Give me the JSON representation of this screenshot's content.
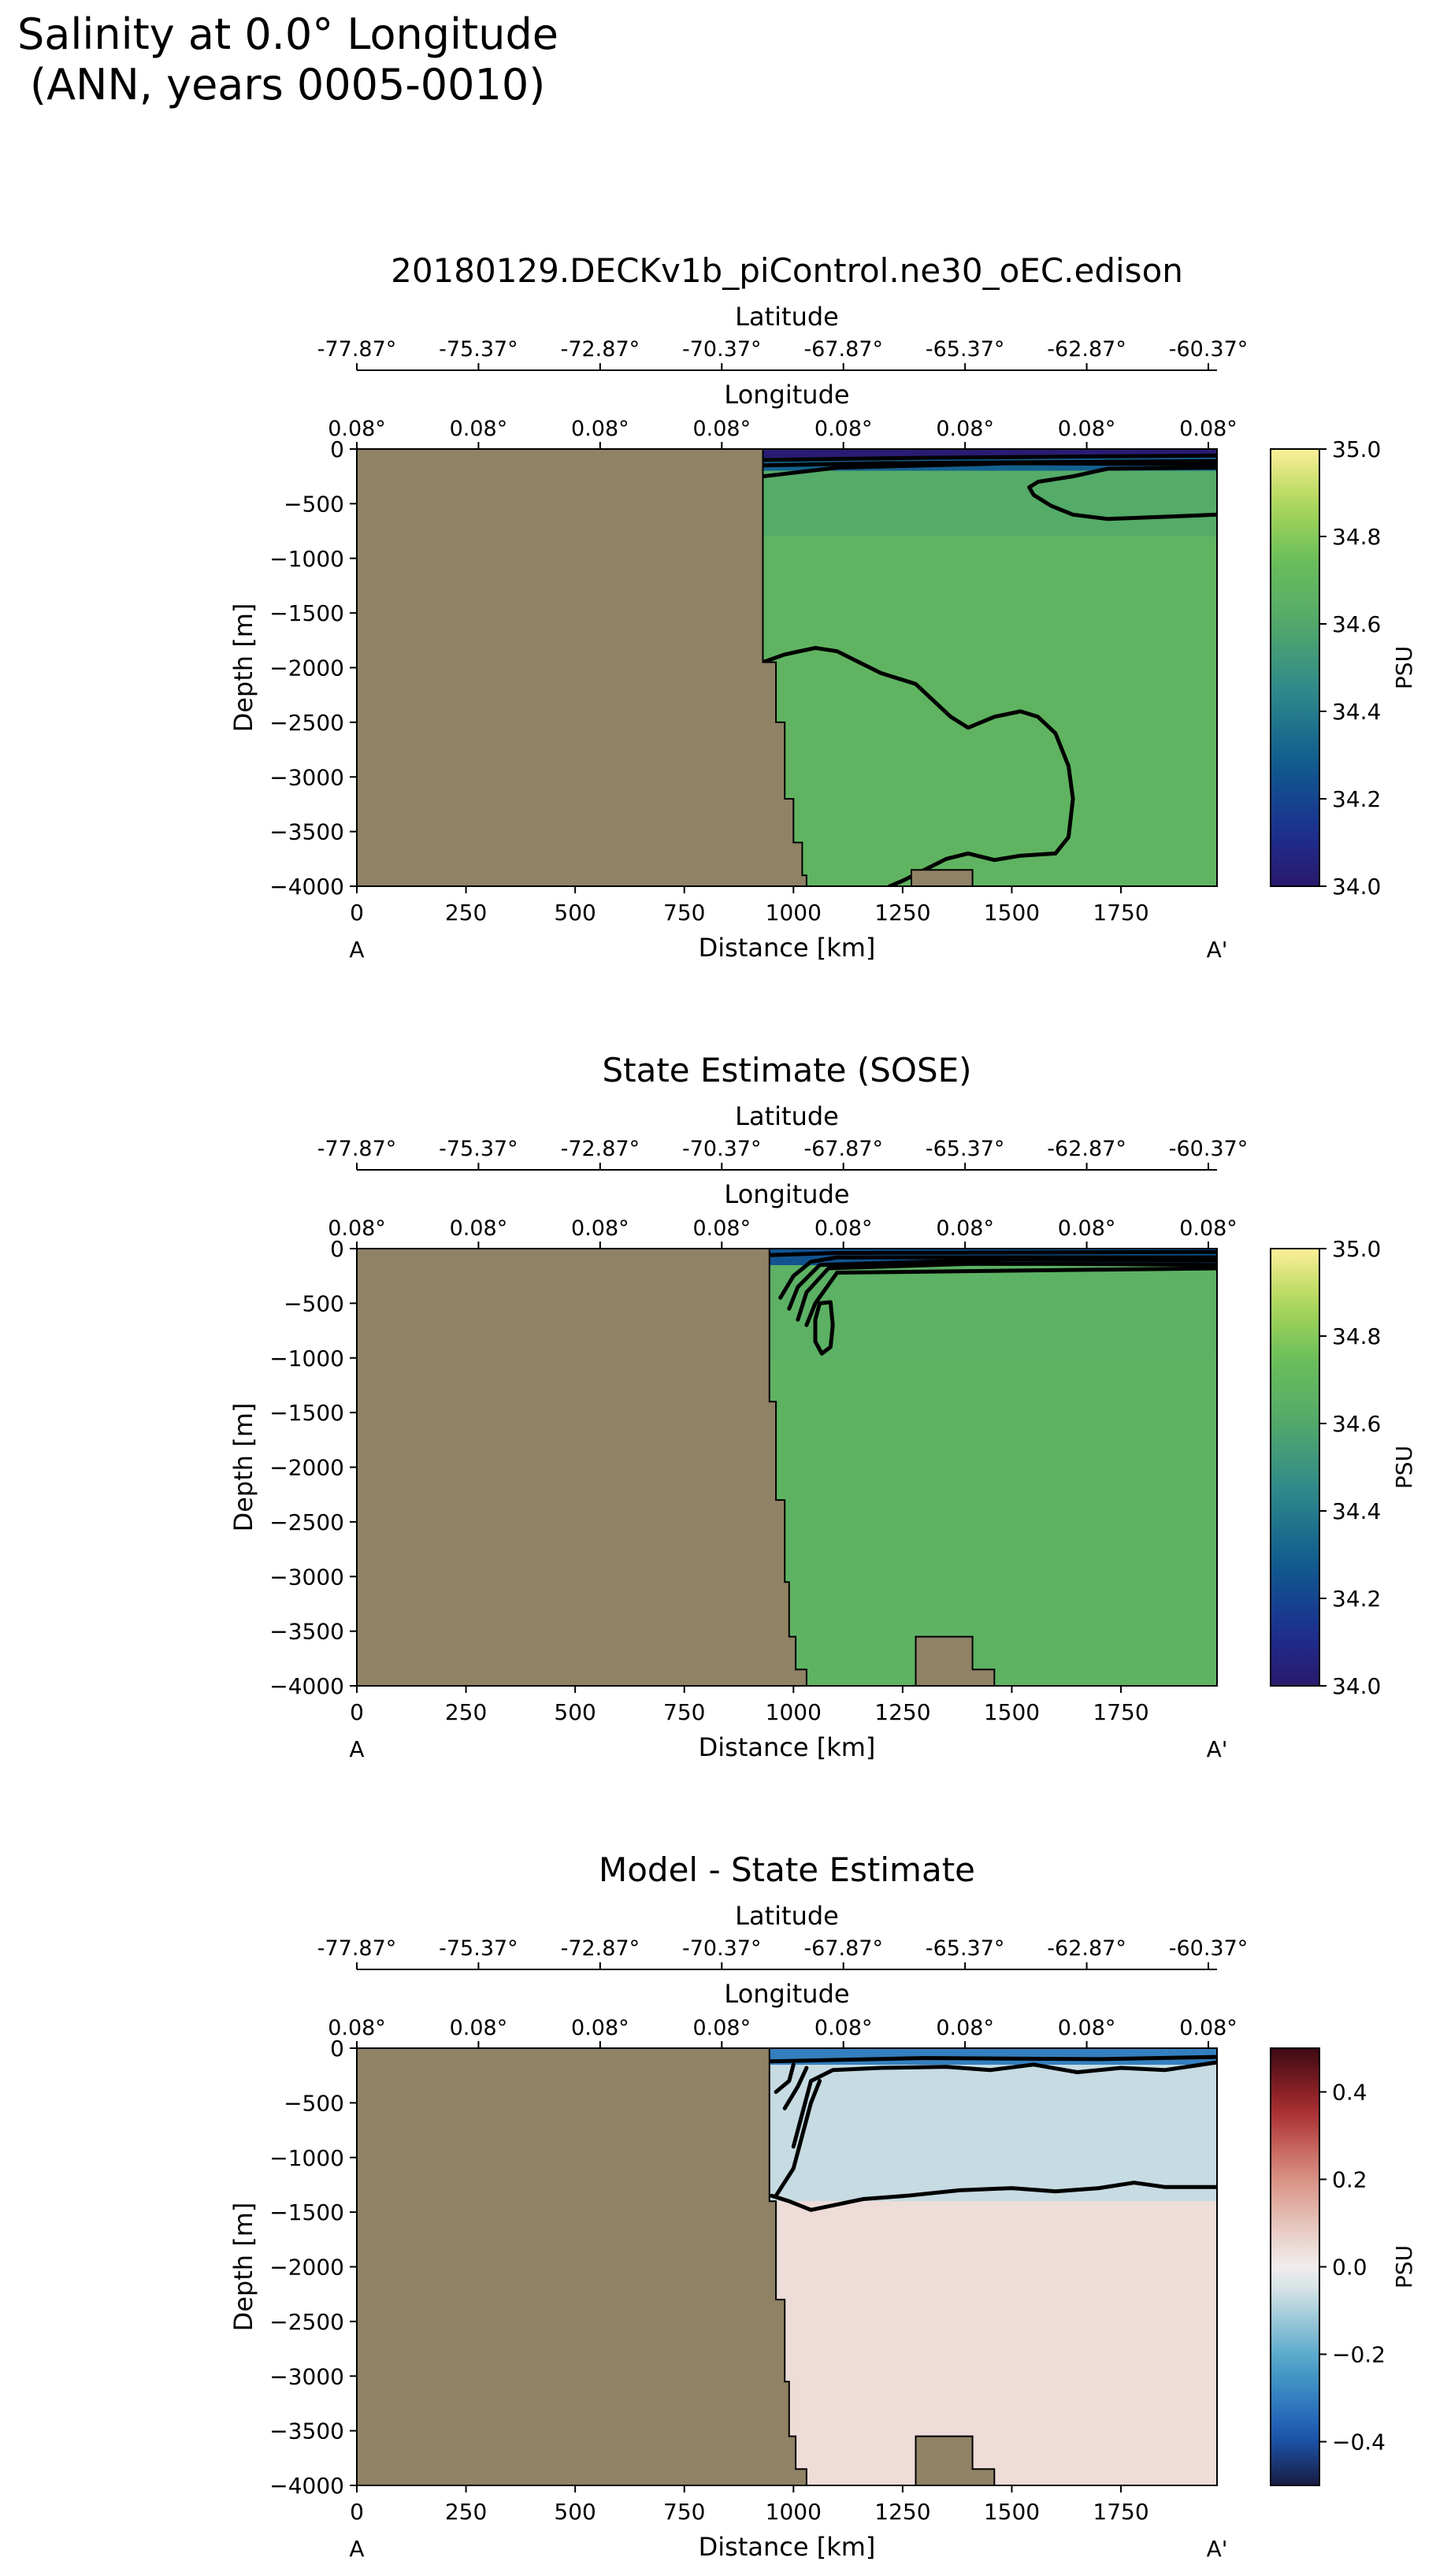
{
  "figure": {
    "title_line1": "Salinity at 0.0° Longitude",
    "title_line2": "(ANN, years 0005-0010)"
  },
  "chart_data": [
    {
      "type": "heatmap",
      "title": "20180129.DECKv1b_piControl.ne30_oEC.edison",
      "xlabel": "Distance [km]",
      "ylabel": "Depth [m]",
      "xlim": [
        0,
        1970
      ],
      "ylim": [
        -4000,
        0
      ],
      "xticks": [
        0,
        250,
        500,
        750,
        1000,
        1250,
        1500,
        1750
      ],
      "yticks": [
        0,
        -500,
        -1000,
        -1500,
        -2000,
        -2500,
        -3000,
        -3500,
        -4000
      ],
      "section_start": "A",
      "section_end": "A'",
      "lat_axis_label": "Latitude",
      "lat_ticks": [
        "-77.87°",
        "-75.37°",
        "-72.87°",
        "-70.37°",
        "-67.87°",
        "-65.37°",
        "-62.87°",
        "-60.37°"
      ],
      "lon_axis_label": "Longitude",
      "lon_ticks": [
        "0.08°",
        "0.08°",
        "0.08°",
        "0.08°",
        "0.08°",
        "0.08°",
        "0.08°",
        "0.08°"
      ],
      "colorbar": {
        "label": "PSU",
        "vmin": 34.0,
        "vmax": 35.0,
        "ticks": [
          "34.0",
          "34.2",
          "34.4",
          "34.6",
          "34.8",
          "35.0"
        ],
        "colormap": "haline"
      },
      "ocean_start_km": 930,
      "field": [
        {
          "depth_from": 0,
          "depth_to": -80,
          "value": 34.02
        },
        {
          "depth_from": -80,
          "depth_to": -200,
          "value": 34.3
        },
        {
          "depth_from": -200,
          "depth_to": -800,
          "value": 34.62
        },
        {
          "depth_from": -800,
          "depth_to": -4000,
          "value": 34.68
        }
      ],
      "contours": [
        {
          "level": 34.1,
          "points": [
            [
              930,
              -100
            ],
            [
              1300,
              -80
            ],
            [
              1970,
              -60
            ]
          ]
        },
        {
          "level": 34.3,
          "points": [
            [
              930,
              -150
            ],
            [
              1200,
              -130
            ],
            [
              1600,
              -120
            ],
            [
              1970,
              -110
            ]
          ]
        },
        {
          "level": 34.4,
          "points": [
            [
              930,
              -250
            ],
            [
              1100,
              -170
            ],
            [
              1500,
              -130
            ],
            [
              1970,
              -140
            ]
          ]
        },
        {
          "level": 34.62,
          "points": [
            [
              1540,
              -350
            ],
            [
              1560,
              -300
            ],
            [
              1640,
              -250
            ],
            [
              1720,
              -180
            ],
            [
              1970,
              -170
            ]
          ]
        },
        {
          "level": 34.62,
          "points": [
            [
              1970,
              -600
            ],
            [
              1850,
              -620
            ],
            [
              1720,
              -640
            ],
            [
              1640,
              -600
            ],
            [
              1590,
              -520
            ],
            [
              1550,
              -420
            ],
            [
              1540,
              -350
            ]
          ]
        },
        {
          "level": 34.69,
          "points": [
            [
              930,
              -1950
            ],
            [
              980,
              -1880
            ],
            [
              1050,
              -1820
            ],
            [
              1100,
              -1850
            ],
            [
              1150,
              -1950
            ],
            [
              1200,
              -2050
            ],
            [
              1280,
              -2150
            ],
            [
              1320,
              -2300
            ],
            [
              1360,
              -2450
            ],
            [
              1400,
              -2550
            ],
            [
              1460,
              -2450
            ],
            [
              1520,
              -2400
            ],
            [
              1560,
              -2450
            ],
            [
              1600,
              -2600
            ],
            [
              1630,
              -2900
            ],
            [
              1640,
              -3200
            ],
            [
              1630,
              -3550
            ],
            [
              1600,
              -3700
            ],
            [
              1520,
              -3720
            ],
            [
              1460,
              -3760
            ],
            [
              1400,
              -3700
            ],
            [
              1350,
              -3750
            ],
            [
              1300,
              -3850
            ],
            [
              1250,
              -3950
            ],
            [
              1220,
              -4000
            ]
          ]
        }
      ],
      "topography": [
        [
          0,
          0
        ],
        [
          930,
          0
        ],
        [
          930,
          -1950
        ],
        [
          960,
          -1950
        ],
        [
          960,
          -2500
        ],
        [
          980,
          -2500
        ],
        [
          980,
          -3200
        ],
        [
          1000,
          -3200
        ],
        [
          1000,
          -3600
        ],
        [
          1020,
          -3600
        ],
        [
          1020,
          -3900
        ],
        [
          1030,
          -3900
        ],
        [
          1030,
          -4000
        ],
        [
          1270,
          -4000
        ],
        [
          1270,
          -3850
        ],
        [
          1410,
          -3850
        ],
        [
          1410,
          -4000
        ],
        [
          0,
          -4000
        ]
      ]
    },
    {
      "type": "heatmap",
      "title": "State Estimate (SOSE)",
      "xlabel": "Distance [km]",
      "ylabel": "Depth [m]",
      "xlim": [
        0,
        1970
      ],
      "ylim": [
        -4000,
        0
      ],
      "xticks": [
        0,
        250,
        500,
        750,
        1000,
        1250,
        1500,
        1750
      ],
      "yticks": [
        0,
        -500,
        -1000,
        -1500,
        -2000,
        -2500,
        -3000,
        -3500,
        -4000
      ],
      "section_start": "A",
      "section_end": "A'",
      "lat_axis_label": "Latitude",
      "lat_ticks": [
        "-77.87°",
        "-75.37°",
        "-72.87°",
        "-70.37°",
        "-67.87°",
        "-65.37°",
        "-62.87°",
        "-60.37°"
      ],
      "lon_axis_label": "Longitude",
      "lon_ticks": [
        "0.08°",
        "0.08°",
        "0.08°",
        "0.08°",
        "0.08°",
        "0.08°",
        "0.08°",
        "0.08°"
      ],
      "colorbar": {
        "label": "PSU",
        "vmin": 34.0,
        "vmax": 35.0,
        "ticks": [
          "34.0",
          "34.2",
          "34.4",
          "34.6",
          "34.8",
          "35.0"
        ],
        "colormap": "haline"
      },
      "ocean_start_km": 945,
      "field": [
        {
          "depth_from": 0,
          "depth_to": -150,
          "value": 34.25
        },
        {
          "depth_from": -150,
          "depth_to": -1000,
          "value": 34.66
        },
        {
          "depth_from": -1000,
          "depth_to": -4000,
          "value": 34.67
        }
      ],
      "contours": [
        {
          "level": 34.1,
          "points": [
            [
              945,
              -60
            ],
            [
              1100,
              -40
            ],
            [
              1970,
              -30
            ]
          ]
        },
        {
          "level": 34.2,
          "points": [
            [
              970,
              -450
            ],
            [
              1000,
              -250
            ],
            [
              1040,
              -120
            ],
            [
              1100,
              -80
            ],
            [
              1970,
              -80
            ]
          ]
        },
        {
          "level": 34.3,
          "points": [
            [
              990,
              -550
            ],
            [
              1010,
              -350
            ],
            [
              1060,
              -150
            ],
            [
              1300,
              -120
            ],
            [
              1500,
              -100
            ],
            [
              1970,
              -110
            ]
          ]
        },
        {
          "level": 34.4,
          "points": [
            [
              1010,
              -650
            ],
            [
              1030,
              -400
            ],
            [
              1080,
              -180
            ],
            [
              1400,
              -140
            ],
            [
              1600,
              -140
            ],
            [
              1970,
              -150
            ]
          ]
        },
        {
          "level": 34.5,
          "points": [
            [
              1030,
              -700
            ],
            [
              1050,
              -500
            ],
            [
              1100,
              -220
            ],
            [
              1970,
              -180
            ]
          ]
        },
        {
          "level": 34.7,
          "points": [
            [
              1060,
              -500
            ],
            [
              1085,
              -490
            ],
            [
              1090,
              -700
            ],
            [
              1085,
              -900
            ],
            [
              1065,
              -960
            ],
            [
              1050,
              -850
            ],
            [
              1050,
              -650
            ],
            [
              1060,
              -500
            ]
          ]
        }
      ],
      "topography": [
        [
          0,
          0
        ],
        [
          945,
          0
        ],
        [
          945,
          -1400
        ],
        [
          960,
          -1400
        ],
        [
          960,
          -2300
        ],
        [
          980,
          -2300
        ],
        [
          980,
          -3050
        ],
        [
          990,
          -3050
        ],
        [
          990,
          -3550
        ],
        [
          1005,
          -3550
        ],
        [
          1005,
          -3850
        ],
        [
          1030,
          -3850
        ],
        [
          1030,
          -4000
        ],
        [
          1280,
          -4000
        ],
        [
          1280,
          -3550
        ],
        [
          1410,
          -3550
        ],
        [
          1410,
          -3850
        ],
        [
          1460,
          -3850
        ],
        [
          1460,
          -4000
        ],
        [
          0,
          -4000
        ]
      ]
    },
    {
      "type": "heatmap",
      "title": "Model - State Estimate",
      "xlabel": "Distance [km]",
      "ylabel": "Depth [m]",
      "xlim": [
        0,
        1970
      ],
      "ylim": [
        -4000,
        0
      ],
      "xticks": [
        0,
        250,
        500,
        750,
        1000,
        1250,
        1500,
        1750
      ],
      "yticks": [
        0,
        -500,
        -1000,
        -1500,
        -2000,
        -2500,
        -3000,
        -3500,
        -4000
      ],
      "section_start": "A",
      "section_end": "A'",
      "lat_axis_label": "Latitude",
      "lat_ticks": [
        "-77.87°",
        "-75.37°",
        "-72.87°",
        "-70.37°",
        "-67.87°",
        "-65.37°",
        "-62.87°",
        "-60.37°"
      ],
      "lon_axis_label": "Longitude",
      "lon_ticks": [
        "0.08°",
        "0.08°",
        "0.08°",
        "0.08°",
        "0.08°",
        "0.08°",
        "0.08°",
        "0.08°"
      ],
      "colorbar": {
        "label": "PSU",
        "vmin": -0.5,
        "vmax": 0.5,
        "ticks": [
          "−0.4",
          "−0.2",
          "0.0",
          "0.2",
          "0.4"
        ],
        "colormap": "balance"
      },
      "ocean_start_km": 945,
      "field": [
        {
          "depth_from": 0,
          "depth_to": -150,
          "value": -0.3
        },
        {
          "depth_from": -150,
          "depth_to": -1400,
          "value": -0.07
        },
        {
          "depth_from": -1400,
          "depth_to": -4000,
          "value": 0.04
        }
      ],
      "contours": [
        {
          "level": -0.2,
          "points": [
            [
              945,
              -120
            ],
            [
              1300,
              -90
            ],
            [
              1700,
              -100
            ],
            [
              1970,
              -80
            ]
          ]
        },
        {
          "level": 0.2,
          "points": [
            [
              960,
              -400
            ],
            [
              990,
              -300
            ],
            [
              1000,
              -150
            ]
          ]
        },
        {
          "level": 0.1,
          "points": [
            [
              980,
              -550
            ],
            [
              1010,
              -350
            ],
            [
              1030,
              -180
            ]
          ]
        },
        {
          "level": -0.05,
          "points": [
            [
              1000,
              -900
            ],
            [
              1040,
              -300
            ],
            [
              1090,
              -200
            ],
            [
              1200,
              -180
            ],
            [
              1350,
              -170
            ],
            [
              1450,
              -200
            ],
            [
              1550,
              -150
            ],
            [
              1650,
              -220
            ],
            [
              1750,
              -180
            ],
            [
              1850,
              -200
            ],
            [
              1970,
              -130
            ]
          ]
        },
        {
          "level": -0.01,
          "points": [
            [
              950,
              -1350
            ],
            [
              990,
              -1400
            ],
            [
              1040,
              -1480
            ],
            [
              1100,
              -1430
            ],
            [
              1160,
              -1380
            ],
            [
              1260,
              -1350
            ],
            [
              1380,
              -1300
            ],
            [
              1500,
              -1280
            ],
            [
              1600,
              -1310
            ],
            [
              1700,
              -1280
            ],
            [
              1780,
              -1230
            ],
            [
              1850,
              -1270
            ],
            [
              1970,
              -1270
            ]
          ]
        },
        {
          "level": -0.01,
          "points": [
            [
              960,
              -1350
            ],
            [
              1000,
              -1100
            ],
            [
              1020,
              -800
            ],
            [
              1040,
              -500
            ],
            [
              1060,
              -300
            ]
          ]
        }
      ],
      "topography": [
        [
          0,
          0
        ],
        [
          945,
          0
        ],
        [
          945,
          -1400
        ],
        [
          960,
          -1400
        ],
        [
          960,
          -2300
        ],
        [
          980,
          -2300
        ],
        [
          980,
          -3050
        ],
        [
          990,
          -3050
        ],
        [
          990,
          -3550
        ],
        [
          1005,
          -3550
        ],
        [
          1005,
          -3850
        ],
        [
          1030,
          -3850
        ],
        [
          1030,
          -4000
        ],
        [
          1280,
          -4000
        ],
        [
          1280,
          -3550
        ],
        [
          1410,
          -3550
        ],
        [
          1410,
          -3850
        ],
        [
          1460,
          -3850
        ],
        [
          1460,
          -4000
        ],
        [
          0,
          -4000
        ]
      ]
    }
  ]
}
